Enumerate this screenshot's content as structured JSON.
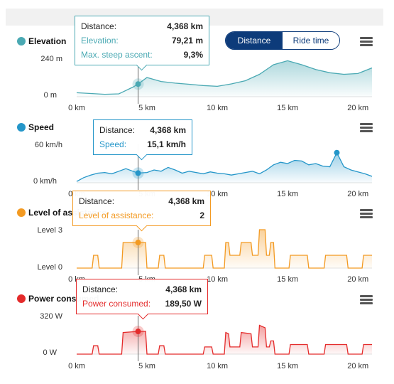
{
  "toggle": {
    "distance": "Distance",
    "ride_time": "Ride time",
    "selected": "Distance"
  },
  "x_ticks": [
    "0 km",
    "5 km",
    "10 km",
    "15 km",
    "20 km"
  ],
  "cursor_km": 4.368,
  "charts": {
    "elevation": {
      "title": "Elevation",
      "color": "#4aa9b3",
      "y_top": "240 m",
      "y_bottom": "0 m",
      "tooltip": {
        "k1": "Distance:",
        "v1": "4,368 km",
        "k2": "Elevation:",
        "v2": "79,21 m",
        "k3": "Max. steep ascent:",
        "v3": "9,3%"
      }
    },
    "speed": {
      "title": "Speed",
      "color": "#2496c9",
      "y_top": "60 km/h",
      "y_bottom": "0 km/h",
      "tooltip": {
        "k1": "Distance:",
        "v1": "4,368 km",
        "k2": "Speed:",
        "v2": "15,1 km/h"
      }
    },
    "assistance": {
      "title": "Level of assistance",
      "color": "#f39a22",
      "y_top": "Level 3",
      "y_bottom": "Level 0",
      "tooltip": {
        "k1": "Distance:",
        "v1": "4,368 km",
        "k2": "Level of assistance:",
        "v2": "2"
      }
    },
    "power": {
      "title": "Power consumed",
      "color": "#e42b2b",
      "y_top": "320 W",
      "y_bottom": "0 W",
      "tooltip": {
        "k1": "Distance:",
        "v1": "4,368 km",
        "k2": "Power consumed:",
        "v2": "189,50 W"
      }
    }
  },
  "chart_data": [
    {
      "type": "area",
      "xlabel": "",
      "ylabel": "",
      "x": [
        0,
        1,
        2,
        3,
        4,
        4.368,
        5,
        6,
        7,
        8,
        9,
        10,
        11,
        12,
        13,
        14,
        15,
        16,
        17,
        18,
        19,
        20,
        21
      ],
      "series": [
        {
          "values": [
            25,
            20,
            15,
            18,
            60,
            79,
            120,
            95,
            85,
            78,
            70,
            65,
            80,
            100,
            140,
            200,
            225,
            200,
            170,
            150,
            140,
            145,
            180
          ]
        }
      ],
      "xlim": [
        0,
        21
      ],
      "ylim": [
        0,
        240
      ]
    },
    {
      "type": "line",
      "xlabel": "",
      "ylabel": "",
      "x": [
        0,
        0.5,
        1,
        1.5,
        2,
        2.5,
        3,
        3.5,
        4,
        4.368,
        5,
        5.5,
        6,
        6.5,
        7,
        7.5,
        8,
        8.5,
        9,
        9.5,
        10,
        10.5,
        11,
        11.5,
        12,
        12.5,
        13,
        13.5,
        14,
        14.5,
        15,
        15.5,
        16,
        16.5,
        17,
        17.5,
        18,
        18.5,
        19,
        19.5,
        20,
        20.5,
        21
      ],
      "series": [
        {
          "values": [
            2,
            8,
            12,
            15,
            16,
            14,
            18,
            22,
            18,
            15.1,
            16,
            20,
            18,
            24,
            20,
            15,
            18,
            16,
            14,
            17,
            15,
            14,
            12,
            14,
            16,
            18,
            14,
            20,
            28,
            32,
            30,
            35,
            34,
            28,
            30,
            26,
            25,
            47,
            25,
            20,
            17,
            14,
            10
          ]
        }
      ],
      "xlim": [
        0,
        21
      ],
      "ylim": [
        0,
        60
      ]
    },
    {
      "type": "line",
      "xlabel": "",
      "ylabel": "",
      "x": [
        0,
        1.1,
        1.2,
        1.5,
        1.6,
        3.2,
        3.3,
        4.9,
        5.0,
        5.8,
        5.9,
        6.2,
        6.3,
        9.0,
        9.1,
        9.6,
        9.7,
        10.5,
        10.6,
        10.8,
        10.9,
        11.6,
        11.7,
        12.4,
        12.5,
        12.9,
        13.0,
        13.4,
        13.5,
        13.7,
        13.8,
        14.0,
        14.1,
        15.1,
        15.2,
        16.4,
        16.5,
        17.6,
        17.7,
        19.2,
        19.3,
        20.3,
        20.4,
        21
      ],
      "series": [
        {
          "values": [
            0,
            0,
            1,
            1,
            0,
            0,
            2,
            2,
            0,
            0,
            1,
            1,
            0,
            0,
            1,
            1,
            0,
            0,
            2,
            2,
            1,
            1,
            2,
            2,
            1,
            1,
            3,
            3,
            1,
            1,
            2,
            2,
            0,
            0,
            1,
            1,
            0,
            0,
            1,
            1,
            0,
            0,
            1,
            1
          ]
        }
      ],
      "xlim": [
        0,
        21
      ],
      "ylim": [
        0,
        3
      ]
    },
    {
      "type": "line",
      "xlabel": "",
      "ylabel": "",
      "x": [
        0,
        1.1,
        1.2,
        1.5,
        1.6,
        3.2,
        3.3,
        4.368,
        4.9,
        5.0,
        5.8,
        5.9,
        6.2,
        6.3,
        9.0,
        9.1,
        9.6,
        9.7,
        10.5,
        10.6,
        10.8,
        10.9,
        11.6,
        11.7,
        12.4,
        12.5,
        12.9,
        13.0,
        13.4,
        13.5,
        13.7,
        13.8,
        14.0,
        14.1,
        15.1,
        15.2,
        16.4,
        16.5,
        17.6,
        17.7,
        19.2,
        19.3,
        20.3,
        20.4,
        21
      ],
      "series": [
        {
          "values": [
            0,
            0,
            70,
            70,
            0,
            0,
            180,
            189.5,
            190,
            0,
            0,
            70,
            70,
            0,
            0,
            60,
            60,
            0,
            0,
            180,
            170,
            60,
            60,
            180,
            170,
            60,
            60,
            240,
            220,
            60,
            60,
            110,
            110,
            0,
            0,
            80,
            80,
            0,
            0,
            80,
            80,
            0,
            0,
            80,
            80
          ]
        }
      ],
      "xlim": [
        0,
        21
      ],
      "ylim": [
        0,
        320
      ]
    }
  ]
}
